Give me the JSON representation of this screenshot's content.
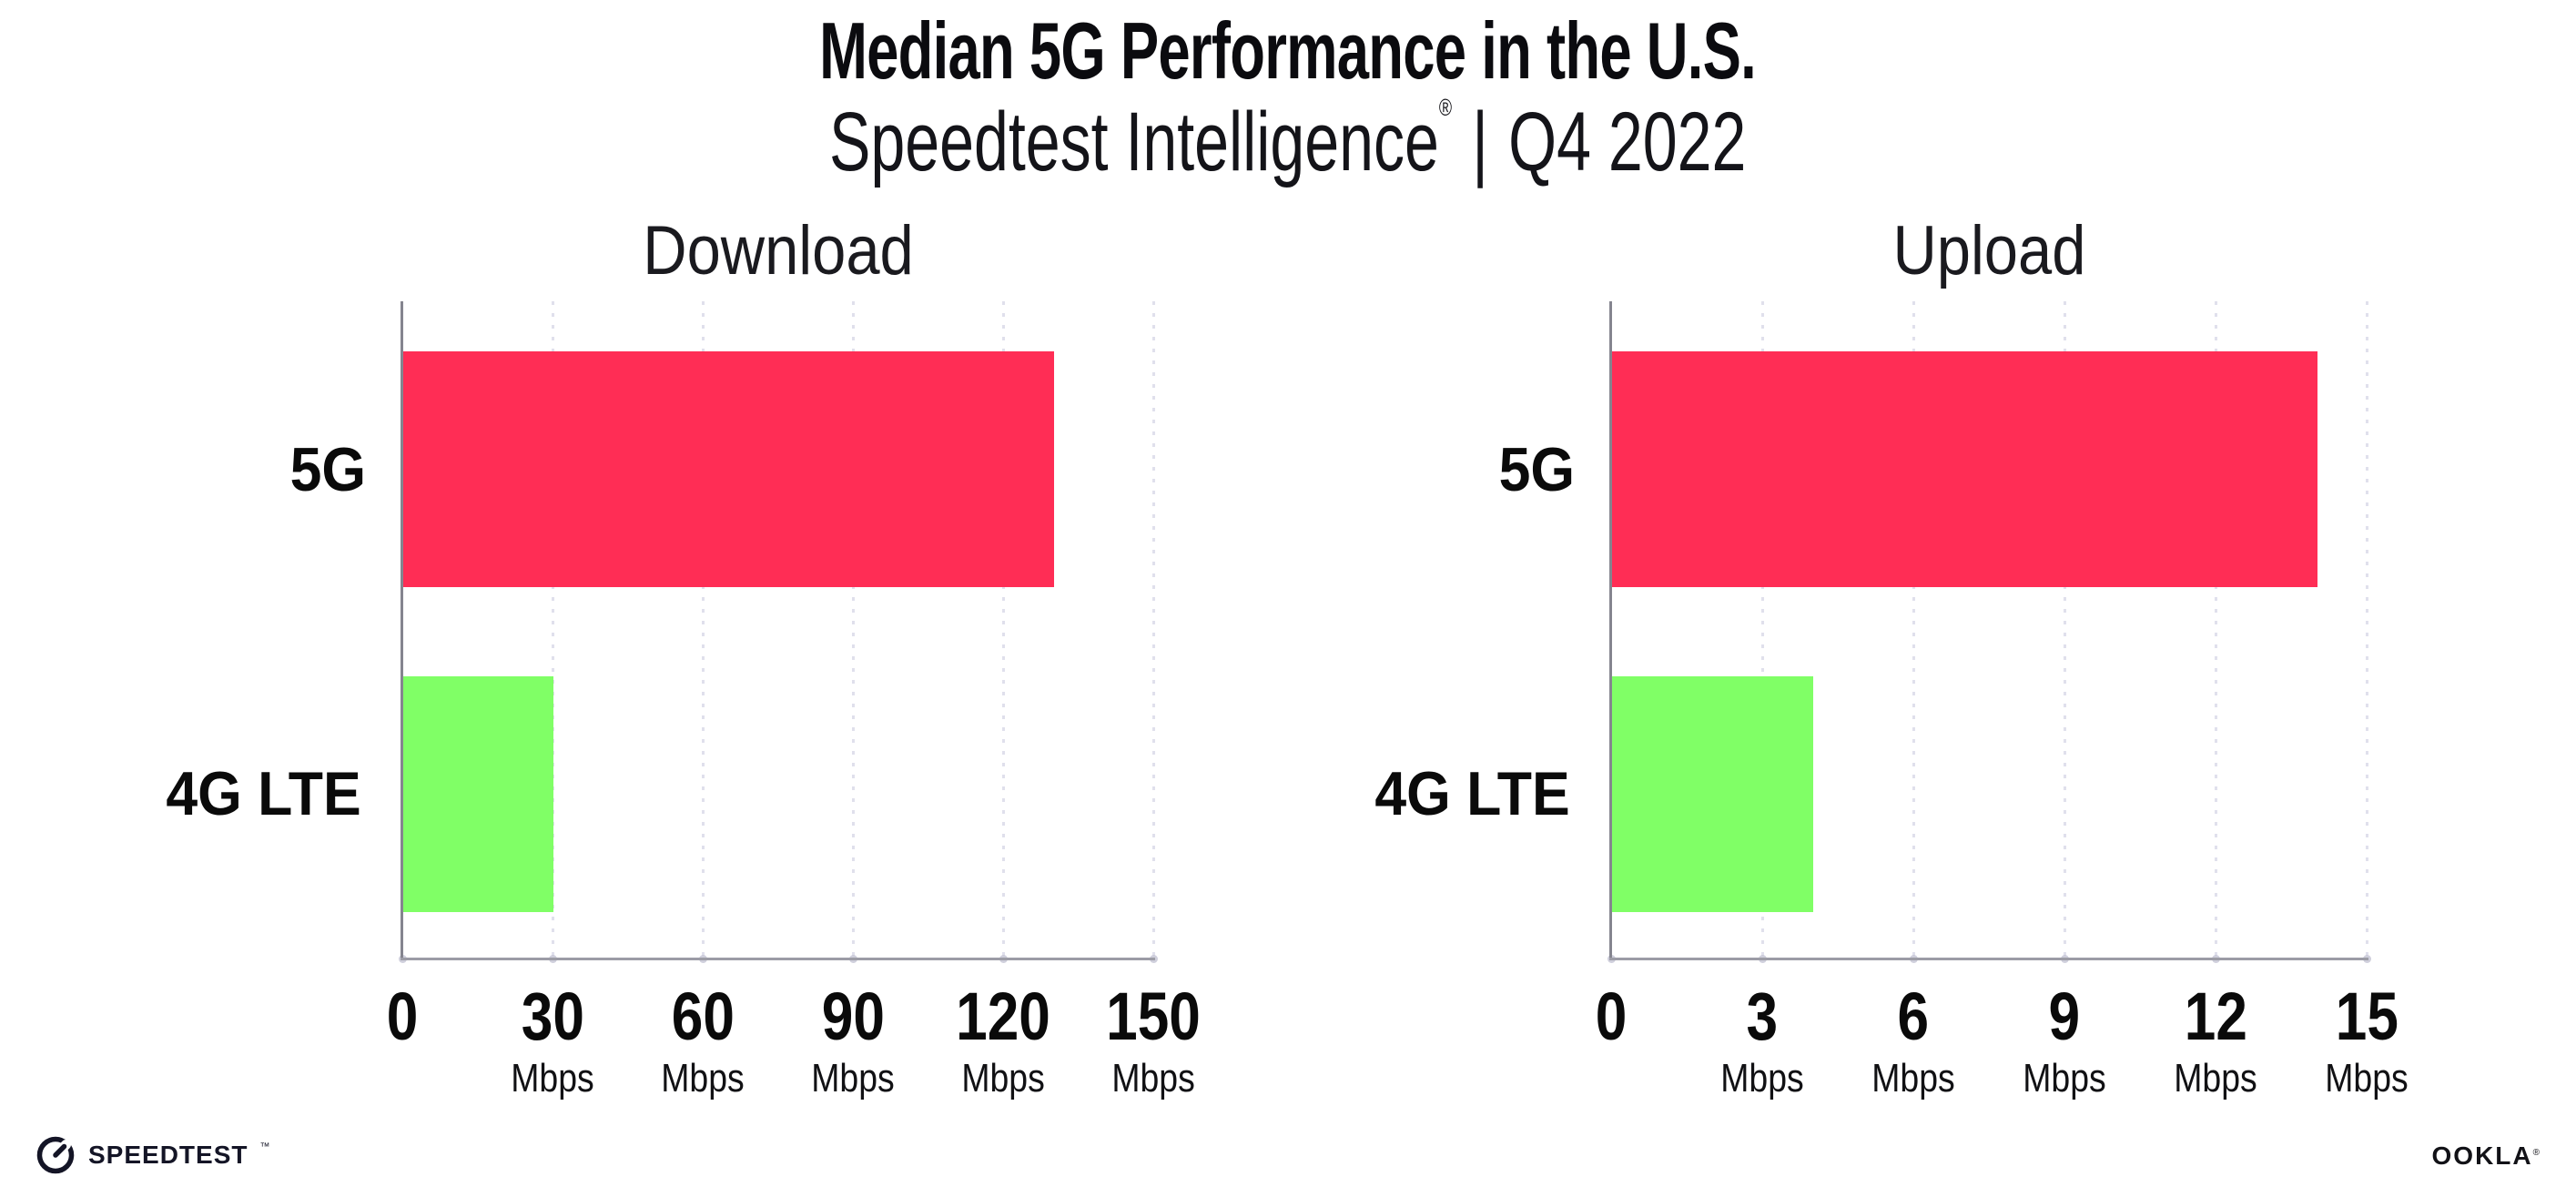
{
  "header": {
    "title": "Median 5G Performance in the U.S.",
    "subtitle_brand": "Speedtest Intelligence",
    "subtitle_reg_mark": "®",
    "subtitle_divider": "|",
    "subtitle_period": "Q4 2022"
  },
  "chart_data": [
    {
      "type": "bar",
      "orientation": "horizontal",
      "title": "Download",
      "categories": [
        "5G",
        "4G LTE"
      ],
      "values": [
        130,
        30
      ],
      "unit": "Mbps",
      "xlim": [
        0,
        150
      ],
      "xticks": [
        0,
        30,
        60,
        90,
        120,
        150
      ],
      "bar_colors": [
        "#FF2D55",
        "#80FF66"
      ],
      "grid": "vertical-dotted",
      "legend": "none"
    },
    {
      "type": "bar",
      "orientation": "horizontal",
      "title": "Upload",
      "categories": [
        "5G",
        "4G LTE"
      ],
      "values": [
        14,
        4
      ],
      "unit": "Mbps",
      "xlim": [
        0,
        15
      ],
      "xticks": [
        0,
        3,
        6,
        9,
        12,
        15
      ],
      "bar_colors": [
        "#FF2D55",
        "#80FF66"
      ],
      "grid": "vertical-dotted",
      "legend": "none"
    }
  ],
  "footer": {
    "speedtest_logo_text": "SPEEDTEST",
    "speedtest_trademark": "™",
    "ookla_logo_text": "OOKLA",
    "ookla_reg_mark": "®"
  },
  "colors": {
    "bar_5g": "#FF2D55",
    "bar_4g_lte": "#80FF66",
    "grid_line": "#E0E0EC",
    "axis_left_spine": "#85858F",
    "axis_bottom_line": "#9C9CA6",
    "tick_dot": "#C7C7D6",
    "text": "#0B0B0F"
  }
}
